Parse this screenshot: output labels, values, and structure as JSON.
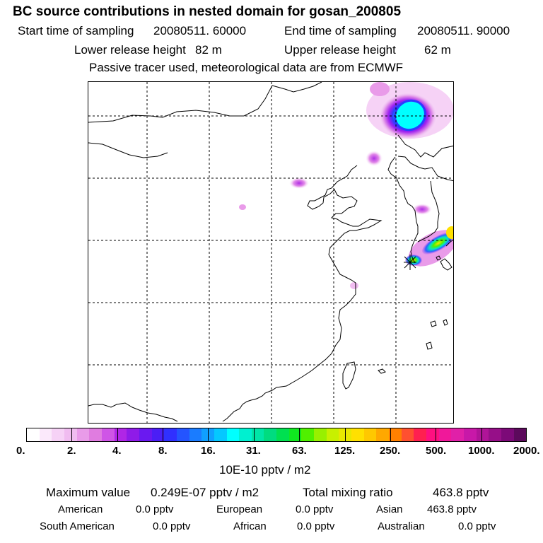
{
  "title": "BC  source contributions in nested domain for gosan_200805",
  "sampling": {
    "start_label": "Start time of sampling",
    "start_value": "20080511. 60000",
    "end_label": "End time of sampling",
    "end_value": "20080511. 90000"
  },
  "release": {
    "lower_label": "Lower release height",
    "lower_value": "82 m",
    "upper_label": "Upper release height",
    "upper_value": "62 m"
  },
  "note": "Passive tracer used, meteorological data are from ECMWF",
  "colorbar": {
    "tick_labels": [
      "0.",
      "2.",
      "4.",
      "8.",
      "16.",
      "31.",
      "63.",
      "125.",
      "250.",
      "500.",
      "1000.",
      "2000."
    ],
    "unit": "10E-10 pptv / m2",
    "colors": [
      "#ffffff",
      "#fbe9fb",
      "#f6d2f6",
      "#f0bcf0",
      "#e99be9",
      "#e07ce0",
      "#cf55e6",
      "#b026e6",
      "#8f1be8",
      "#6a19f0",
      "#4b1ef5",
      "#3030ff",
      "#2454ff",
      "#1a7cff",
      "#10a0ff",
      "#05c8ff",
      "#00ffff",
      "#00f0d0",
      "#00e6a8",
      "#00dc80",
      "#00e050",
      "#10e820",
      "#50f000",
      "#98f000",
      "#c8f000",
      "#e8e800",
      "#ffe000",
      "#ffc800",
      "#ffa800",
      "#ff8000",
      "#ff5030",
      "#ff2050",
      "#ff1080",
      "#f0189a",
      "#e020a8",
      "#c818a8",
      "#b01498",
      "#960f88",
      "#7c0a78",
      "#5c0a5c"
    ]
  },
  "stats": {
    "max_label": "Maximum value",
    "max_value": "0.249E-07 pptv / m2",
    "total_label": "Total mixing ratio",
    "total_value": "463.8 pptv"
  },
  "regions": {
    "american_label": "American",
    "american_value": "0.0 pptv",
    "european_label": "European",
    "european_value": "0.0 pptv",
    "asian_label": "Asian",
    "asian_value": "463.8 pptv",
    "south_american_label": "South American",
    "south_american_value": "0.0 pptv",
    "african_label": "African",
    "african_value": "0.0 pptv",
    "australian_label": "Australian",
    "australian_value": "0.0 pptv"
  }
}
